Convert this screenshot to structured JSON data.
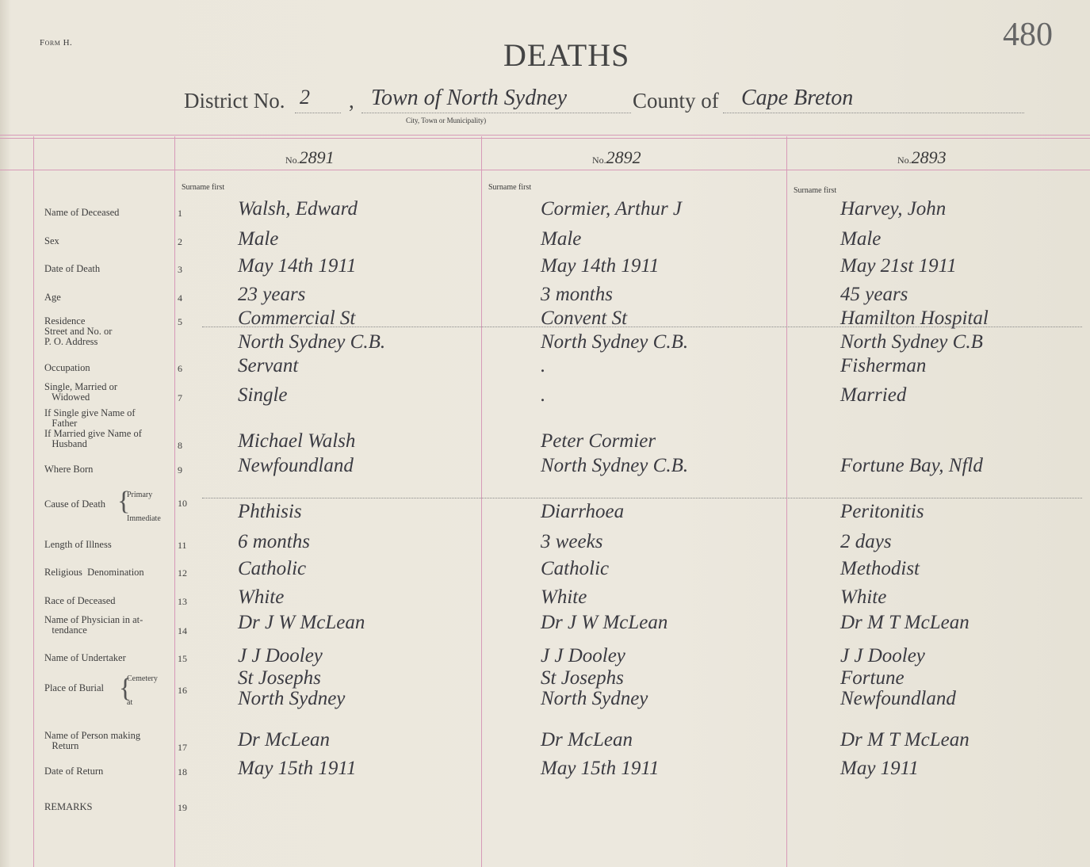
{
  "form_label": "Form H.",
  "title": "DEATHS",
  "page_number": "480",
  "district": {
    "label": "District No.",
    "number": "2",
    "municipality": "Town of North Sydney",
    "municipality_caption": "City, Town or Municipality)",
    "county_label": "County of",
    "county": "Cape Breton"
  },
  "number_prefix": "No.",
  "surname_first": "Surname first",
  "fields": [
    {
      "label": "Name of Deceased",
      "num": "1"
    },
    {
      "label": "Sex",
      "num": "2"
    },
    {
      "label": "Date of Death",
      "num": "3"
    },
    {
      "label": "Age",
      "num": "4"
    },
    {
      "label": "Residence\nStreet and No. or\nP. O. Address",
      "num": "5"
    },
    {
      "label": "Occupation",
      "num": "6"
    },
    {
      "label": "Single, Married or\n   Widowed",
      "num": "7"
    },
    {
      "label": "If Single give Name of\n   Father\nIf Married give Name of\n   Husband",
      "num": "8"
    },
    {
      "label": "Where Born",
      "num": "9"
    },
    {
      "label": "Cause of Death",
      "num": "10",
      "sub": [
        "Primary",
        "Immediate"
      ]
    },
    {
      "label": "Length of Illness",
      "num": "11"
    },
    {
      "label": "Religious  Denomination",
      "num": "12"
    },
    {
      "label": "Race of Deceased",
      "num": "13"
    },
    {
      "label": "Name of Physician in at-\n   tendance",
      "num": "14"
    },
    {
      "label": "Name of Undertaker",
      "num": "15"
    },
    {
      "label": "Place of Burial",
      "num": "16",
      "sub": [
        "Cemetery",
        "at"
      ]
    },
    {
      "label": "Name of Person making\n   Return",
      "num": "17"
    },
    {
      "label": "Date of Return",
      "num": "18"
    },
    {
      "label": "REMARKS",
      "num": "19"
    }
  ],
  "entries": [
    {
      "number": "2891",
      "values": [
        "Walsh, Edward",
        "Male",
        "May 14th 1911",
        "23 years",
        "Commercial St",
        "Servant",
        "Single",
        "Michael Walsh",
        "Newfoundland",
        "Phthisis",
        "6 months",
        "Catholic",
        "White",
        "Dr J W McLean",
        "J J Dooley",
        "St Josephs",
        "Dr McLean",
        "May 15th 1911",
        ""
      ],
      "residence_line2": "North Sydney C.B.",
      "burial_line2": "North Sydney"
    },
    {
      "number": "2892",
      "values": [
        "Cormier, Arthur J",
        "Male",
        "May 14th 1911",
        "3 months",
        "Convent St",
        ".",
        ".",
        "Peter Cormier",
        "North Sydney C.B.",
        "Diarrhoea",
        "3 weeks",
        "Catholic",
        "White",
        "Dr J W McLean",
        "J J Dooley",
        "St Josephs",
        "Dr McLean",
        "May 15th 1911",
        ""
      ],
      "residence_line2": "North Sydney C.B.",
      "burial_line2": "North Sydney"
    },
    {
      "number": "2893",
      "values": [
        "Harvey, John",
        "Male",
        "May 21st 1911",
        "45 years",
        "Hamilton Hospital",
        "Fisherman",
        "Married",
        "",
        "Fortune Bay, Nfld",
        "Peritonitis",
        "2 days",
        "Methodist",
        "White",
        "Dr M T McLean",
        "J J Dooley",
        "Fortune",
        "Dr M T McLean",
        "May 1911",
        ""
      ],
      "residence_line2": "North Sydney C.B",
      "burial_line2": "Newfoundland"
    }
  ]
}
